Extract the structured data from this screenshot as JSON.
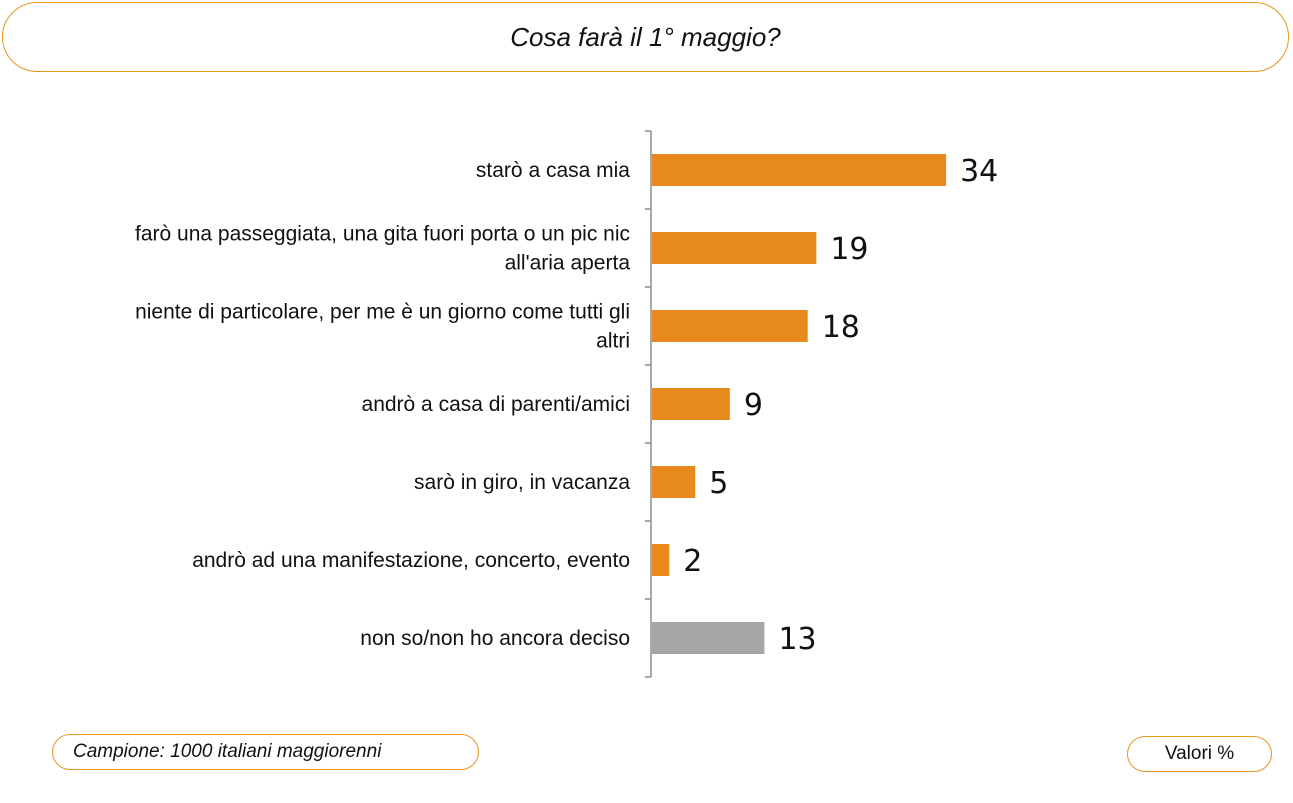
{
  "title": "Cosa farà il 1° maggio?",
  "footer": {
    "sample": "Campione: 1000 italiani maggiorenni",
    "units": "Valori %"
  },
  "colors": {
    "primary_bar": "#e8891e",
    "undecided_bar": "#a6a6a6",
    "frame_accent": "#e8961e"
  },
  "chart_data": {
    "type": "bar",
    "orientation": "horizontal",
    "title": "Cosa farà il 1° maggio?",
    "categories": [
      [
        "starò a casa mia"
      ],
      [
        "farò una passeggiata, una gita fuori porta o un pic nic",
        "all'aria aperta"
      ],
      [
        "niente di particolare, per me è un giorno come tutti gli",
        "altri"
      ],
      [
        "andrò a casa di parenti/amici"
      ],
      [
        "sarò in giro, in vacanza"
      ],
      [
        "andrò ad una manifestazione, concerto, evento"
      ],
      [
        "non so/non ho ancora deciso"
      ]
    ],
    "values": [
      34,
      19,
      18,
      9,
      5,
      2,
      13
    ],
    "bar_colors": [
      "#e8891e",
      "#e8891e",
      "#e8891e",
      "#e8891e",
      "#e8891e",
      "#e8891e",
      "#a6a6a6"
    ],
    "xlim": [
      0,
      40
    ],
    "data_labels": true,
    "grid": false,
    "legend": "none"
  }
}
